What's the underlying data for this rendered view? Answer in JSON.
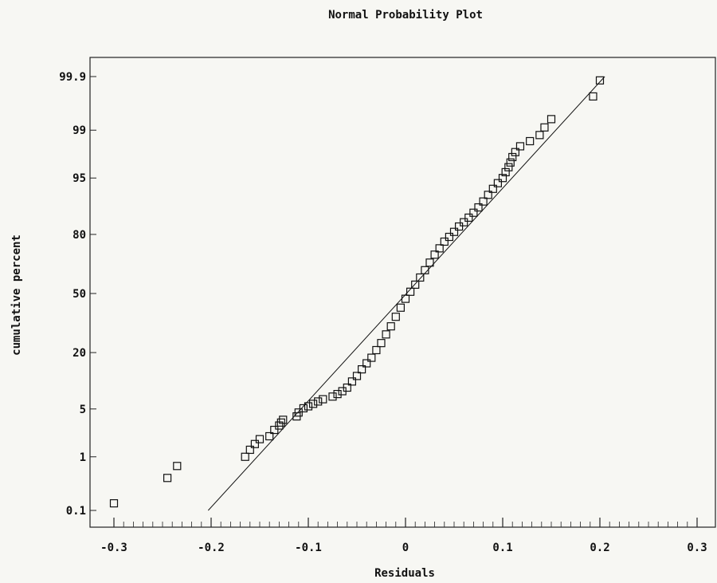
{
  "chart_data": {
    "type": "scatter",
    "title": "Normal Probability Plot",
    "xlabel": "Residuals",
    "ylabel": "cumulative percent",
    "xlim": [
      -0.3,
      0.3
    ],
    "x_ticks": [
      {
        "value": -0.3,
        "label": "-0.3"
      },
      {
        "value": -0.2,
        "label": "-0.2"
      },
      {
        "value": -0.1,
        "label": "-0.1"
      },
      {
        "value": 0.0,
        "label": "0"
      },
      {
        "value": 0.1,
        "label": "0.1"
      },
      {
        "value": 0.2,
        "label": "0.2"
      },
      {
        "value": 0.3,
        "label": "0.3"
      }
    ],
    "y_ticks": [
      {
        "value": 0.1,
        "label": "0.1"
      },
      {
        "value": 1,
        "label": "1"
      },
      {
        "value": 5,
        "label": "5"
      },
      {
        "value": 20,
        "label": "20"
      },
      {
        "value": 50,
        "label": "50"
      },
      {
        "value": 80,
        "label": "80"
      },
      {
        "value": 95,
        "label": "95"
      },
      {
        "value": 99,
        "label": "99"
      },
      {
        "value": 99.9,
        "label": "99.9"
      }
    ],
    "y_scale": "normal-probability",
    "grid": false,
    "legend": "none",
    "reference_line": {
      "x_start": -0.203,
      "y_start": 0.1,
      "x_end": 0.205,
      "y_end": 99.9
    },
    "series": [
      {
        "marker": "open-square",
        "points": [
          {
            "x": -0.3,
            "y": 0.14
          },
          {
            "x": -0.245,
            "y": 0.43
          },
          {
            "x": -0.235,
            "y": 0.7
          },
          {
            "x": -0.165,
            "y": 1.0
          },
          {
            "x": -0.16,
            "y": 1.3
          },
          {
            "x": -0.155,
            "y": 1.6
          },
          {
            "x": -0.15,
            "y": 1.9
          },
          {
            "x": -0.14,
            "y": 2.1
          },
          {
            "x": -0.135,
            "y": 2.6
          },
          {
            "x": -0.13,
            "y": 3.0
          },
          {
            "x": -0.128,
            "y": 3.3
          },
          {
            "x": -0.126,
            "y": 3.6
          },
          {
            "x": -0.112,
            "y": 4.0
          },
          {
            "x": -0.11,
            "y": 4.5
          },
          {
            "x": -0.105,
            "y": 5.1
          },
          {
            "x": -0.1,
            "y": 5.4
          },
          {
            "x": -0.095,
            "y": 5.8
          },
          {
            "x": -0.09,
            "y": 6.2
          },
          {
            "x": -0.085,
            "y": 6.6
          },
          {
            "x": -0.075,
            "y": 7.1
          },
          {
            "x": -0.07,
            "y": 7.6
          },
          {
            "x": -0.065,
            "y": 8.2
          },
          {
            "x": -0.06,
            "y": 9.0
          },
          {
            "x": -0.055,
            "y": 10.5
          },
          {
            "x": -0.05,
            "y": 12
          },
          {
            "x": -0.045,
            "y": 14
          },
          {
            "x": -0.04,
            "y": 16
          },
          {
            "x": -0.035,
            "y": 18
          },
          {
            "x": -0.03,
            "y": 21
          },
          {
            "x": -0.025,
            "y": 24
          },
          {
            "x": -0.02,
            "y": 28
          },
          {
            "x": -0.015,
            "y": 32
          },
          {
            "x": -0.01,
            "y": 37
          },
          {
            "x": -0.005,
            "y": 42
          },
          {
            "x": 0.0,
            "y": 47
          },
          {
            "x": 0.005,
            "y": 51
          },
          {
            "x": 0.01,
            "y": 55
          },
          {
            "x": 0.015,
            "y": 59
          },
          {
            "x": 0.02,
            "y": 63
          },
          {
            "x": 0.025,
            "y": 67
          },
          {
            "x": 0.03,
            "y": 71
          },
          {
            "x": 0.035,
            "y": 74
          },
          {
            "x": 0.04,
            "y": 77
          },
          {
            "x": 0.045,
            "y": 79
          },
          {
            "x": 0.05,
            "y": 81
          },
          {
            "x": 0.055,
            "y": 83
          },
          {
            "x": 0.06,
            "y": 84.5
          },
          {
            "x": 0.065,
            "y": 86
          },
          {
            "x": 0.07,
            "y": 87.5
          },
          {
            "x": 0.075,
            "y": 89
          },
          {
            "x": 0.08,
            "y": 90.5
          },
          {
            "x": 0.085,
            "y": 92
          },
          {
            "x": 0.09,
            "y": 93.2
          },
          {
            "x": 0.095,
            "y": 94.2
          },
          {
            "x": 0.1,
            "y": 95
          },
          {
            "x": 0.103,
            "y": 95.8
          },
          {
            "x": 0.106,
            "y": 96.4
          },
          {
            "x": 0.108,
            "y": 96.9
          },
          {
            "x": 0.11,
            "y": 97.4
          },
          {
            "x": 0.113,
            "y": 97.8
          },
          {
            "x": 0.118,
            "y": 98.2
          },
          {
            "x": 0.128,
            "y": 98.5
          },
          {
            "x": 0.138,
            "y": 98.8
          },
          {
            "x": 0.143,
            "y": 99.1
          },
          {
            "x": 0.15,
            "y": 99.35
          },
          {
            "x": 0.193,
            "y": 99.75
          },
          {
            "x": 0.2,
            "y": 99.88
          }
        ]
      }
    ]
  }
}
